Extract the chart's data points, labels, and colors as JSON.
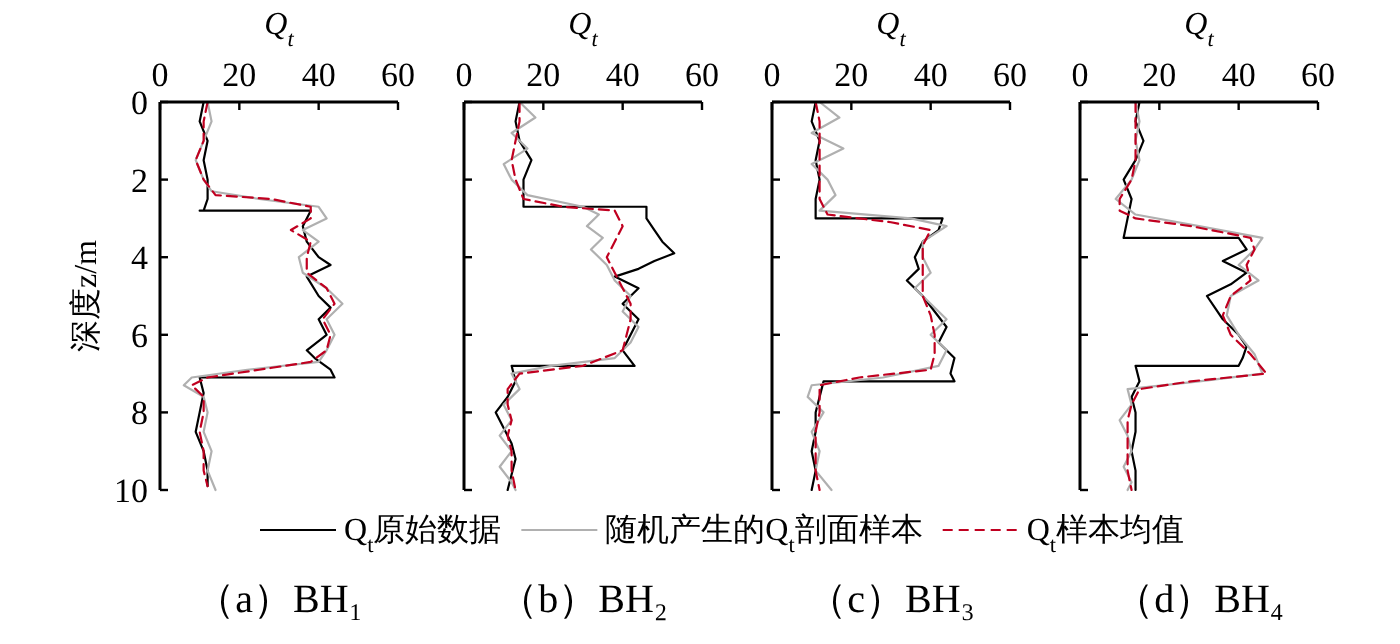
{
  "chart_data": [
    {
      "type": "line",
      "title": "（a）BH₁",
      "xlabel": "Q$_{t}$",
      "ylabel": "深度z/m",
      "xlim": [
        0,
        60
      ],
      "xticks": [
        0,
        20,
        40,
        60
      ],
      "ylim": [
        10,
        0
      ],
      "yticks": [
        0,
        2,
        4,
        6,
        8,
        10
      ],
      "legend": "bottom",
      "series": [
        {
          "name": "Q$_{t}$原始数据",
          "color": "#000000",
          "line_style": "solid",
          "x": [
            11,
            10,
            12,
            11,
            12,
            12,
            11,
            10,
            38,
            36,
            37,
            40,
            43,
            37,
            40,
            43,
            40,
            42,
            37,
            39,
            43,
            44,
            10,
            11,
            10,
            9,
            11,
            12,
            12
          ],
          "values": [
            0,
            0.5,
            1,
            1.5,
            2,
            2.5,
            2.8,
            2.8,
            2.8,
            3.2,
            3.6,
            4.0,
            4.2,
            4.5,
            5.0,
            5.3,
            5.6,
            6.0,
            6.4,
            6.6,
            6.9,
            7.1,
            7.1,
            7.5,
            8,
            8.5,
            9,
            9.5,
            9.9
          ]
        },
        {
          "name": "随机产生的Q$_{t}$剖面样本",
          "color": "#b0b0b0",
          "line_style": "solid",
          "x": [
            12,
            13,
            11,
            9,
            11,
            13,
            25,
            40,
            42,
            36,
            40,
            35,
            36,
            42,
            46,
            42,
            44,
            42,
            40,
            22,
            8,
            6,
            11,
            12,
            11,
            13,
            12,
            14
          ],
          "values": [
            0,
            0.5,
            1,
            1.5,
            2,
            2.3,
            2.5,
            2.7,
            3,
            3.3,
            3.6,
            4,
            4.4,
            4.8,
            5.2,
            5.6,
            6,
            6.4,
            6.7,
            6.9,
            7.1,
            7.3,
            7.6,
            8,
            8.5,
            9,
            9.5,
            10
          ]
        },
        {
          "name": "Q$_{t}$样本均值",
          "color": "#c00020",
          "line_style": "dashed",
          "x": [
            12,
            11,
            11,
            9,
            11,
            14,
            28,
            38,
            38,
            33,
            38,
            37,
            37,
            42,
            44,
            41,
            43,
            42,
            38,
            25,
            12,
            8,
            11,
            11,
            10,
            11,
            11,
            12
          ],
          "values": [
            0,
            0.5,
            1,
            1.5,
            2,
            2.4,
            2.5,
            2.7,
            3,
            3.3,
            3.6,
            4,
            4.4,
            4.8,
            5.2,
            5.6,
            6,
            6.4,
            6.7,
            6.9,
            7.1,
            7.3,
            7.6,
            8,
            8.5,
            9,
            9.5,
            9.9
          ]
        }
      ]
    },
    {
      "type": "line",
      "title": "（b）BH₂",
      "xlabel": "Q$_{t}$",
      "xlim": [
        0,
        60
      ],
      "xticks": [
        0,
        20,
        40,
        60
      ],
      "ylim": [
        10,
        0
      ],
      "yticks": [
        0,
        2,
        4,
        6,
        8,
        10
      ],
      "tick_labels": "x",
      "series": [
        {
          "color": "#000000",
          "line_style": "solid",
          "x": [
            14,
            13,
            14,
            17,
            15,
            15,
            15,
            46,
            46,
            48,
            50,
            53,
            48,
            44,
            38,
            44,
            40,
            44,
            42,
            40,
            43,
            12,
            13,
            11,
            8,
            10,
            12,
            13,
            12,
            11
          ],
          "values": [
            0,
            0.5,
            1,
            1.5,
            2,
            2.5,
            2.7,
            2.7,
            3,
            3.3,
            3.6,
            3.9,
            4.1,
            4.3,
            4.5,
            4.8,
            5.2,
            5.6,
            6,
            6.4,
            6.8,
            6.8,
            7.2,
            7.6,
            8,
            8.4,
            8.8,
            9.2,
            9.6,
            10
          ]
        },
        {
          "color": "#b0b0b0",
          "line_style": "solid",
          "x": [
            14,
            18,
            12,
            16,
            10,
            12,
            16,
            30,
            34,
            31,
            35,
            32,
            36,
            38,
            42,
            40,
            44,
            42,
            38,
            22,
            12,
            14,
            10,
            12,
            9,
            12,
            9,
            12,
            13
          ],
          "values": [
            0,
            0.4,
            0.8,
            1.2,
            1.6,
            2,
            2.4,
            2.7,
            2.9,
            3.2,
            3.5,
            3.8,
            4.2,
            4.6,
            5,
            5.4,
            5.8,
            6.2,
            6.6,
            6.8,
            7,
            7.4,
            7.8,
            8.2,
            8.6,
            9,
            9.4,
            9.8,
            10
          ]
        },
        {
          "color": "#c00020",
          "line_style": "dashed",
          "x": [
            14,
            14,
            13,
            12,
            13,
            15,
            25,
            38,
            40,
            38,
            36,
            38,
            40,
            42,
            42,
            41,
            40,
            30,
            14,
            11,
            11,
            12,
            11,
            12,
            12,
            13
          ],
          "values": [
            0,
            0.5,
            1,
            1.5,
            2,
            2.5,
            2.7,
            2.8,
            3.2,
            3.6,
            4,
            4.4,
            4.8,
            5.2,
            5.6,
            6,
            6.4,
            6.8,
            7,
            7.4,
            7.8,
            8.2,
            8.6,
            9,
            9.5,
            10
          ]
        }
      ]
    },
    {
      "type": "line",
      "title": "（c）BH₃",
      "xlabel": "Q$_{t}$",
      "xlim": [
        0,
        60
      ],
      "xticks": [
        0,
        20,
        40,
        60
      ],
      "ylim": [
        10,
        0
      ],
      "yticks": [
        0,
        2,
        4,
        6,
        8,
        10
      ],
      "tick_labels": "x",
      "series": [
        {
          "color": "#000000",
          "line_style": "solid",
          "x": [
            11,
            10,
            12,
            11,
            12,
            11,
            11,
            43,
            42,
            38,
            36,
            37,
            34,
            38,
            41,
            44,
            42,
            46,
            45,
            46,
            13,
            12,
            11,
            11,
            10,
            11,
            10
          ],
          "values": [
            0,
            0.5,
            1,
            1.5,
            2,
            2.5,
            3,
            3,
            3.3,
            3.6,
            4,
            4.3,
            4.6,
            5,
            5.4,
            5.8,
            6.2,
            6.6,
            7,
            7.2,
            7.2,
            7.6,
            8,
            8.5,
            9,
            9.5,
            10
          ]
        },
        {
          "color": "#b0b0b0",
          "line_style": "solid",
          "x": [
            12,
            17,
            10,
            18,
            10,
            14,
            16,
            12,
            35,
            44,
            38,
            38,
            40,
            36,
            40,
            44,
            40,
            44,
            42,
            28,
            10,
            9,
            13,
            10,
            12,
            11,
            15
          ],
          "values": [
            0,
            0.4,
            0.8,
            1.2,
            1.6,
            2,
            2.4,
            2.8,
            3,
            3.2,
            3.6,
            4,
            4.4,
            4.8,
            5.2,
            5.6,
            6,
            6.4,
            6.8,
            7.1,
            7.3,
            7.6,
            8,
            8.5,
            9,
            9.5,
            10
          ]
        },
        {
          "color": "#c00020",
          "line_style": "dashed",
          "x": [
            11,
            12,
            12,
            12,
            12,
            12,
            14,
            30,
            40,
            38,
            38,
            38,
            38,
            40,
            41,
            41,
            40,
            22,
            12,
            12,
            12,
            11,
            11,
            11,
            12
          ],
          "values": [
            0,
            0.5,
            1,
            1.5,
            2,
            2.5,
            2.9,
            3.1,
            3.3,
            3.7,
            4,
            4.5,
            5,
            5.5,
            6,
            6.5,
            6.9,
            7.1,
            7.3,
            7.7,
            8,
            8.5,
            9,
            9.5,
            10
          ]
        }
      ]
    },
    {
      "type": "line",
      "title": "（d）BH₄",
      "xlabel": "Q$_{t}$",
      "xlim": [
        0,
        60
      ],
      "xticks": [
        0,
        20,
        40,
        60
      ],
      "ylim": [
        10,
        0
      ],
      "yticks": [
        0,
        2,
        4,
        6,
        8,
        10
      ],
      "tick_labels": "x",
      "series": [
        {
          "color": "#000000",
          "line_style": "solid",
          "x": [
            15,
            14,
            16,
            14,
            11,
            13,
            12,
            11,
            40,
            42,
            36,
            42,
            38,
            32,
            34,
            36,
            40,
            42,
            41,
            40,
            14,
            15,
            13,
            14,
            14,
            13,
            14,
            14
          ],
          "values": [
            0,
            0.5,
            1,
            1.5,
            2,
            2.5,
            3,
            3.5,
            3.5,
            3.8,
            4.1,
            4.4,
            4.7,
            5,
            5.3,
            5.6,
            6,
            6.3,
            6.6,
            6.8,
            6.8,
            7.2,
            7.6,
            8,
            8.5,
            9,
            9.5,
            10
          ]
        },
        {
          "color": "#b0b0b0",
          "line_style": "solid",
          "x": [
            14,
            15,
            14,
            15,
            13,
            9,
            14,
            30,
            46,
            44,
            40,
            45,
            38,
            37,
            40,
            44,
            46,
            30,
            12,
            13,
            10,
            12,
            13,
            11,
            13,
            12
          ],
          "values": [
            0,
            0.5,
            1,
            1.5,
            2,
            2.5,
            2.9,
            3.2,
            3.5,
            3.8,
            4.2,
            4.6,
            5,
            5.5,
            6,
            6.5,
            7,
            7.2,
            7.4,
            7.8,
            8.2,
            8.6,
            9,
            9.4,
            9.8,
            10
          ]
        },
        {
          "color": "#c00020",
          "line_style": "dashed",
          "x": [
            14,
            14,
            14,
            14,
            13,
            10,
            10,
            14,
            28,
            43,
            44,
            42,
            43,
            38,
            36,
            38,
            43,
            47,
            28,
            15,
            13,
            12,
            12,
            12,
            12,
            13
          ],
          "values": [
            0,
            0.5,
            1,
            1.5,
            2,
            2.5,
            2.8,
            3,
            3.2,
            3.5,
            3.8,
            4.2,
            4.6,
            5,
            5.5,
            6,
            6.5,
            7,
            7.2,
            7.4,
            7.8,
            8.2,
            8.6,
            9,
            9.5,
            10
          ]
        }
      ]
    }
  ]
}
